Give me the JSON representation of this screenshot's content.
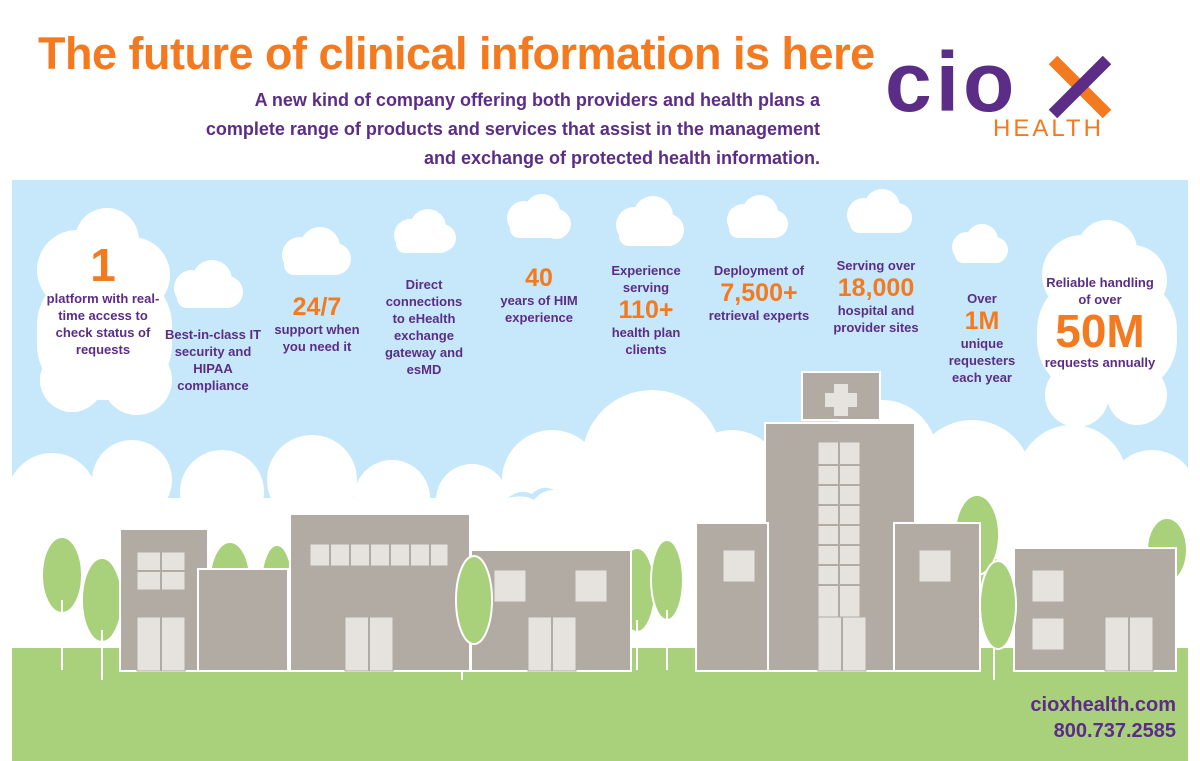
{
  "header": {
    "title": "The future of clinical information is here",
    "subtitle": "A new kind of company offering both providers and health plans a complete range of products and services that assist in the management and exchange of protected health information."
  },
  "logo": {
    "word": "cio",
    "sub": "HEALTH",
    "purple": "#5b2d86",
    "orange": "#f47a20"
  },
  "colors": {
    "sky": "#c6e8fa",
    "cloud": "#ffffff",
    "grass": "#a9d07a",
    "tree": "#a9d07a",
    "building": "#b1aba4",
    "window": "#e6e3df"
  },
  "stats": [
    {
      "pre": "",
      "big": "1",
      "post": "platform with real-time access to check status of requests"
    },
    {
      "pre": "Best-in-class IT security and HIPAA compliance",
      "big": "",
      "post": ""
    },
    {
      "pre": "",
      "big": "24/7",
      "post": "support when you need it"
    },
    {
      "pre": "Direct connections to eHealth exchange gateway and esMD",
      "big": "",
      "post": ""
    },
    {
      "pre": "",
      "big": "40",
      "post": "years of HIM experience"
    },
    {
      "pre": "Experience serving",
      "big": "110+",
      "post": "health plan clients"
    },
    {
      "pre": "Deployment of",
      "big": "7,500+",
      "post": "retrieval experts"
    },
    {
      "pre": "Serving over",
      "big": "18,000",
      "post": "hospital and provider sites"
    },
    {
      "pre": "Over",
      "big": "1M",
      "post": "unique requesters each year"
    },
    {
      "pre": "Reliable handling of over",
      "big": "50M",
      "post": "requests annually"
    }
  ],
  "footer": {
    "website": "cioxhealth.com",
    "phone": "800.737.2585"
  }
}
